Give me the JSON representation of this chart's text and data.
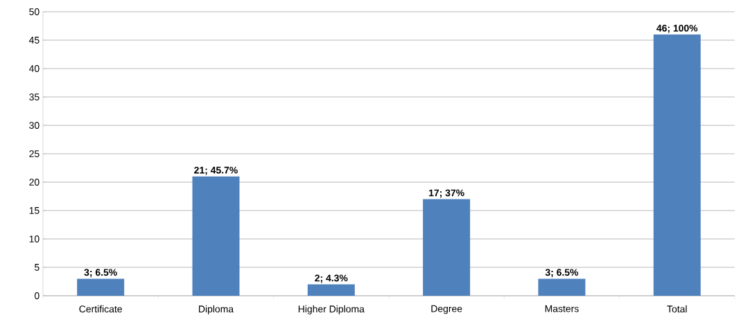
{
  "chart_data": {
    "type": "bar",
    "categories": [
      "Certificate",
      "Diploma",
      "Higher Diploma",
      "Degree",
      "Masters",
      "Total"
    ],
    "values": [
      3,
      21,
      2,
      17,
      3,
      46
    ],
    "value_labels": [
      "3; 6.5%",
      "21; 45.7%",
      "2; 4.3%",
      "17; 37%",
      "3; 6.5%",
      "46; 100%"
    ],
    "color": "#4f81bd",
    "ylim": [
      0,
      50
    ],
    "yticks": [
      0,
      5,
      10,
      15,
      20,
      25,
      30,
      35,
      40,
      45,
      50
    ],
    "grid": "y"
  }
}
